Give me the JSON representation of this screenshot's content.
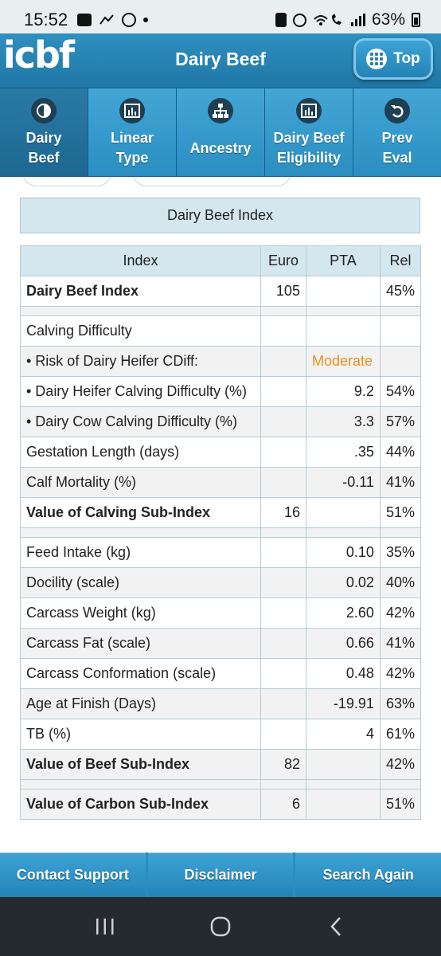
{
  "status_bar": {
    "time": "15:52",
    "battery": "63%"
  },
  "app": {
    "logo": "icbf",
    "title": "Dairy Beef",
    "top_button": "Top"
  },
  "tabs": [
    {
      "line1": "Dairy",
      "line2": "Beef",
      "icon": "half-circle-icon"
    },
    {
      "line1": "Linear",
      "line2": "Type",
      "icon": "bar-chart-icon"
    },
    {
      "line1": "",
      "line2": "Ancestry",
      "icon": "org-chart-icon"
    },
    {
      "line1": "Dairy Beef",
      "line2": "Eligibility",
      "icon": "bar-chart-icon"
    },
    {
      "line1": "Prev",
      "line2": "Eval",
      "icon": "undo-icon"
    }
  ],
  "section_title": "Dairy Beef Index",
  "table": {
    "headers": {
      "index": "Index",
      "euro": "Euro",
      "pta": "PTA",
      "rel": "Rel"
    },
    "rows": [
      {
        "name": "Dairy Beef Index",
        "euro": "105",
        "pta": "",
        "rel": "45%"
      },
      {
        "name": "Calving Difficulty",
        "euro": "",
        "pta": "",
        "rel": ""
      },
      {
        "name": "• Risk of Dairy Heifer CDiff:",
        "euro": "",
        "pta": "Moderate",
        "rel": ""
      },
      {
        "name": "• Dairy Heifer Calving Difficulty (%)",
        "euro": "",
        "pta": "9.2",
        "rel": "54%"
      },
      {
        "name": "• Dairy Cow Calving Difficulty (%)",
        "euro": "",
        "pta": "3.3",
        "rel": "57%"
      },
      {
        "name": "Gestation Length (days)",
        "euro": "",
        "pta": ".35",
        "rel": "44%"
      },
      {
        "name": "Calf Mortality (%)",
        "euro": "",
        "pta": "-0.11",
        "rel": "41%"
      },
      {
        "name": "Value of Calving Sub-Index",
        "euro": "16",
        "pta": "",
        "rel": "51%"
      },
      {
        "name": "Feed Intake (kg)",
        "euro": "",
        "pta": "0.10",
        "rel": "35%"
      },
      {
        "name": "Docility (scale)",
        "euro": "",
        "pta": "0.02",
        "rel": "40%"
      },
      {
        "name": "Carcass Weight (kg)",
        "euro": "",
        "pta": "2.60",
        "rel": "42%"
      },
      {
        "name": "Carcass Fat (scale)",
        "euro": "",
        "pta": "0.66",
        "rel": "41%"
      },
      {
        "name": "Carcass Conformation (scale)",
        "euro": "",
        "pta": "0.48",
        "rel": "42%"
      },
      {
        "name": "Age at Finish (Days)",
        "euro": "",
        "pta": "-19.91",
        "rel": "63%"
      },
      {
        "name": "TB (%)",
        "euro": "",
        "pta": "4",
        "rel": "61%"
      },
      {
        "name": "Value of Beef Sub-Index",
        "euro": "82",
        "pta": "",
        "rel": "42%"
      },
      {
        "name": "Value of Carbon Sub-Index",
        "euro": "6",
        "pta": "",
        "rel": "51%"
      }
    ]
  },
  "footer": {
    "contact": "Contact Support",
    "disclaimer": "Disclaimer",
    "search": "Search Again"
  },
  "colors": {
    "primary": "#2a8ec1",
    "header_cell": "#d4e6ee",
    "moderate": "#e8901c",
    "navbar": "#252a2f"
  }
}
